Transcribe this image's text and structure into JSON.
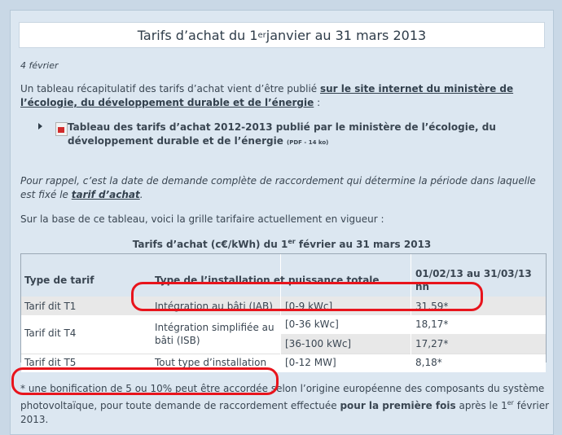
{
  "title": {
    "main": "Tarifs d’achat du 1",
    "sup": "er",
    "rest": " janvier au 31 mars 2013"
  },
  "date": "4 février",
  "intro": {
    "text": "Un tableau récapitulatif des tarifs d’achat vient d’être publié ",
    "link": "sur le site internet du ministère de l’écologie, du développement durable et de l’énergie",
    "suffix": " :"
  },
  "document": {
    "link_text": "Tableau des tarifs d’achat 2012-2013 publié par le ministère de l’écologie, du développement durable et de l’énergie",
    "meta": "(PDF - 14 ko)"
  },
  "reminder": {
    "text": "Pour rappel, c’est la date de demande complète de raccordement qui détermine la période dans laquelle est fixé le ",
    "link": "tarif d’achat",
    "suffix": "."
  },
  "basis": "Sur la base de ce tableau, voici la grille tarifaire actuellement en vigueur :",
  "table_title": {
    "main": "Tarifs d’achat (c€/kWh) du 1",
    "sup": "er",
    "rest": " février au 31 mars 2013"
  },
  "table": {
    "headers": {
      "type": "Type de tarif",
      "install": "Type de l’installation et puissance totale",
      "period": "01/02/13 au 31/03/13 nh"
    },
    "rows": [
      {
        "tarif": "Tarif dit T1",
        "install": "Intégration au bâti (IAB)",
        "range": "[0-9 kWc]",
        "value": "31,59*"
      },
      {
        "tarif": "Tarif dit T4",
        "install": "Intégration simplifiée au bâti (ISB)",
        "range": "[0-36 kWc]",
        "value": "18,17*"
      },
      {
        "range": "[36-100 kWc]",
        "value": "17,27*"
      },
      {
        "tarif": "Tarif dit T5",
        "install": "Tout type d’installation",
        "range": "[0-12 MW]",
        "value": "8,18*"
      }
    ]
  },
  "footnote": {
    "part1": "* une bonification de 5 ou 10% peut être accordée selon l’origine européenne des composants du système photovoltaïque, pour toute demande de raccordement effectuée ",
    "bold": "pour la première fois",
    "part2": " après le 1",
    "sup": "er",
    "part3": " février 2013."
  },
  "colors": {
    "annotation": "#e8141c",
    "header_bg": "#dbe6f0",
    "row_alt": "#e8e8e8"
  }
}
